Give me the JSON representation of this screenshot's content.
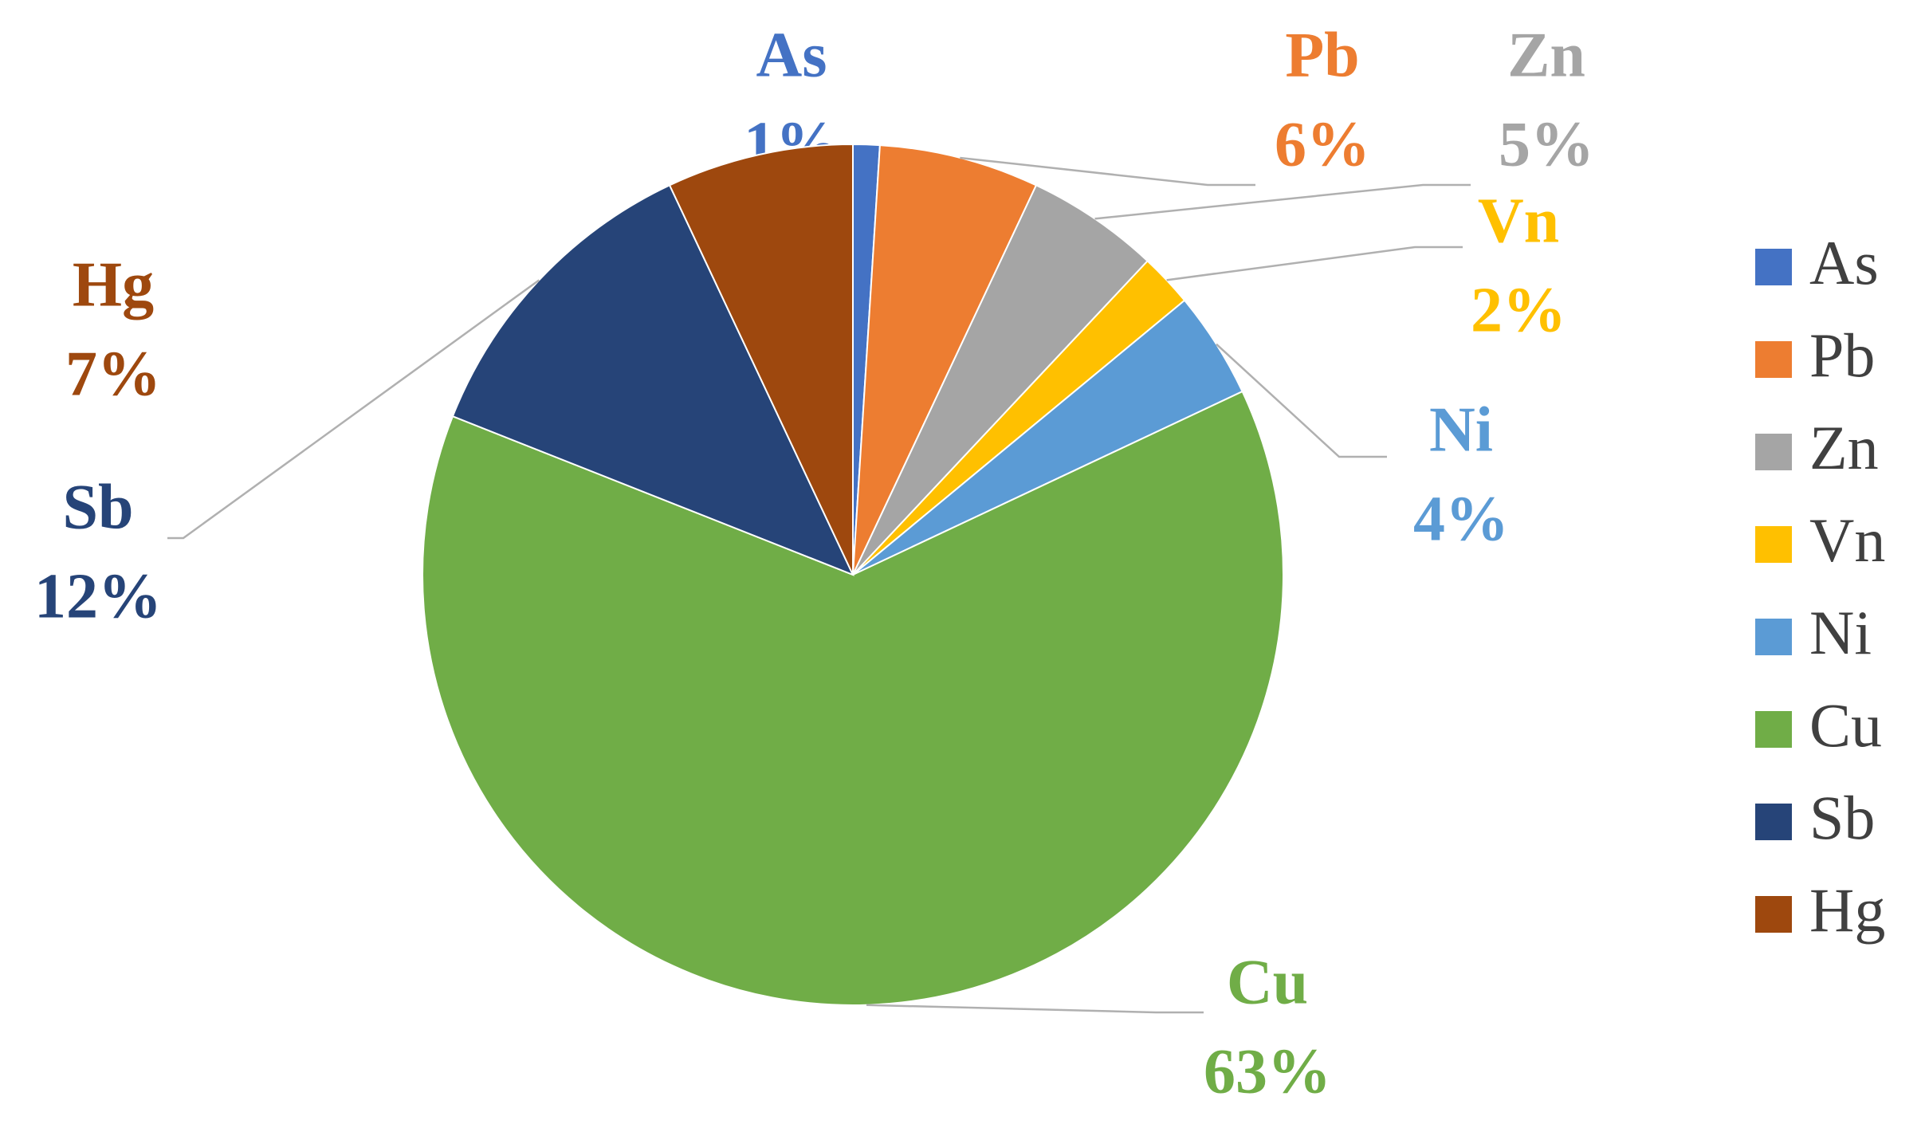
{
  "chart_data": {
    "type": "pie",
    "categories": [
      "As",
      "Pb",
      "Zn",
      "Vn",
      "Ni",
      "Cu",
      "Sb",
      "Hg"
    ],
    "values": [
      1,
      6,
      5,
      2,
      4,
      63,
      12,
      7
    ],
    "value_labels": [
      "1%",
      "6%",
      "5%",
      "2%",
      "4%",
      "63%",
      "12%",
      "7%"
    ],
    "colors": [
      "#4472c4",
      "#ed7d31",
      "#a5a5a5",
      "#ffc000",
      "#5b9bd5",
      "#70ad47",
      "#264478",
      "#9e480e"
    ],
    "legend": "right"
  }
}
